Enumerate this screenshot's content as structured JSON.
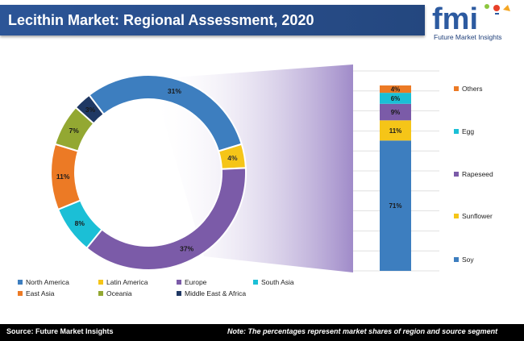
{
  "header": {
    "title": "Lecithin Market: Regional Assessment, 2020",
    "logo_text": "fmi",
    "logo_subtitle": "Future Market Insights"
  },
  "footer": {
    "source": "Source: Future Market Insights",
    "note": "Note: The percentages represent market shares of region and source segment"
  },
  "chart_data": [
    {
      "type": "pie",
      "variant": "donut",
      "title": "",
      "labels": [
        "North America",
        "Latin America",
        "Europe",
        "South Asia",
        "East Asia",
        "Oceania",
        "Middle East & Africa"
      ],
      "values": [
        31,
        4,
        37,
        8,
        11,
        7,
        3
      ],
      "value_labels": [
        "31%",
        "4%",
        "37%",
        "8%",
        "11%",
        "7%",
        "3%"
      ],
      "colors": [
        "#3d7ebf",
        "#f5c518",
        "#7b5ba8",
        "#1bbfd6",
        "#ec7a25",
        "#93a832",
        "#1f3864"
      ],
      "legend_position": "bottom"
    },
    {
      "type": "bar",
      "variant": "stacked-100",
      "title": "",
      "categories": [
        "Soy",
        "Sunflower",
        "Rapeseed",
        "Egg",
        "Others"
      ],
      "values": [
        71,
        11,
        9,
        6,
        4
      ],
      "value_labels": [
        "71%",
        "11%",
        "9%",
        "6%",
        "4%"
      ],
      "colors": [
        "#3d7ebf",
        "#f5c518",
        "#7b5ba8",
        "#1bbfd6",
        "#ec7a25"
      ],
      "legend_position": "right",
      "grid": true,
      "breakout_of": "Europe"
    }
  ]
}
